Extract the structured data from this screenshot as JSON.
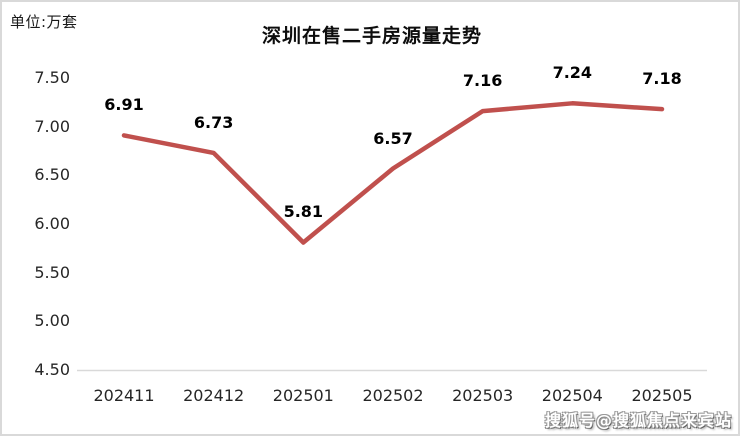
{
  "header": {
    "unit_label": "单位:万套",
    "title": "深圳在售二手房源量走势"
  },
  "watermark": {
    "text": "搜狐号@搜狐焦点来宾站"
  },
  "chart_data": {
    "type": "line",
    "title": "深圳在售二手房源量走势",
    "unit": "万套",
    "categories": [
      "202411",
      "202412",
      "202501",
      "202502",
      "202503",
      "202504",
      "202505"
    ],
    "values": [
      6.91,
      6.73,
      5.81,
      6.57,
      7.16,
      7.24,
      7.18
    ],
    "data_labels": [
      "6.91",
      "6.73",
      "5.81",
      "6.57",
      "7.16",
      "7.24",
      "7.18"
    ],
    "ylim": [
      4.5,
      7.5
    ],
    "yticks": [
      7.5,
      7.0,
      6.5,
      6.0,
      5.5,
      5.0,
      4.5
    ],
    "ytick_labels": [
      "7.50",
      "7.00",
      "6.50",
      "6.00",
      "5.50",
      "5.00",
      "4.50"
    ],
    "xlabel": "",
    "ylabel": "",
    "grid": false,
    "legend": "none",
    "line_color": "#c0504d",
    "axis_line_color": "#d9d9d9",
    "label_color": "#262626"
  }
}
